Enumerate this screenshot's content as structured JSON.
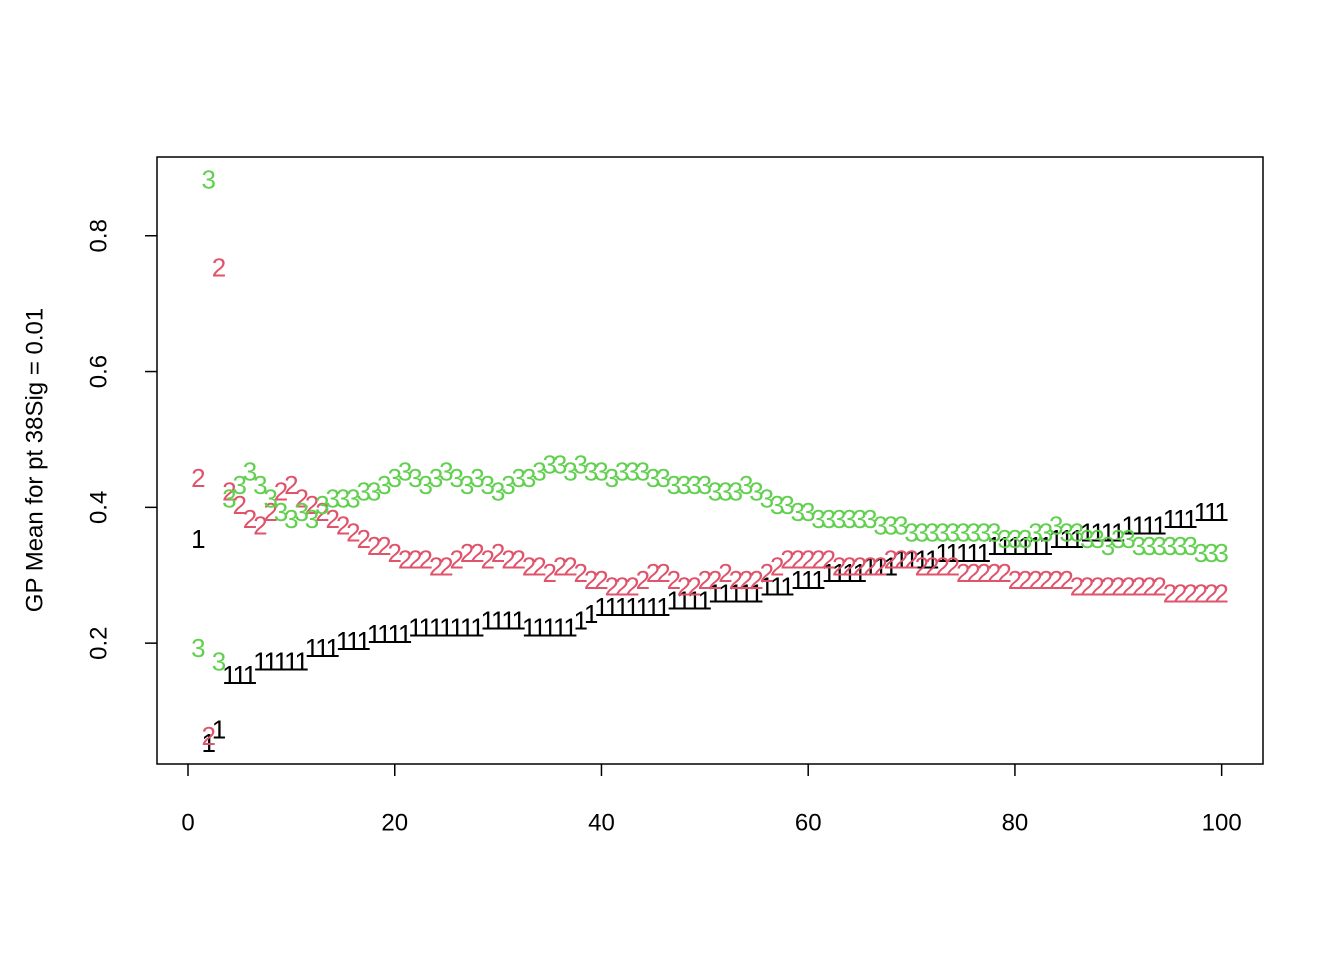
{
  "chart_data": {
    "type": "scatter",
    "ylabel": "GP Mean for pt 38Sig = 0.01",
    "x": [
      1,
      2,
      3,
      4,
      5,
      6,
      7,
      8,
      9,
      10,
      11,
      12,
      13,
      14,
      15,
      16,
      17,
      18,
      19,
      20,
      21,
      22,
      23,
      24,
      25,
      26,
      27,
      28,
      29,
      30,
      31,
      32,
      33,
      34,
      35,
      36,
      37,
      38,
      39,
      40,
      41,
      42,
      43,
      44,
      45,
      46,
      47,
      48,
      49,
      50,
      51,
      52,
      53,
      54,
      55,
      56,
      57,
      58,
      59,
      60,
      61,
      62,
      63,
      64,
      65,
      66,
      67,
      68,
      69,
      70,
      71,
      72,
      73,
      74,
      75,
      76,
      77,
      78,
      79,
      80,
      81,
      82,
      83,
      84,
      85,
      86,
      87,
      88,
      89,
      90,
      91,
      92,
      93,
      94,
      95,
      96,
      97,
      98,
      99,
      100
    ],
    "series": [
      {
        "name": "1",
        "color": "#000000",
        "values": [
          0.35,
          0.05,
          0.07,
          0.15,
          0.15,
          0.15,
          0.17,
          0.17,
          0.17,
          0.17,
          0.17,
          0.19,
          0.19,
          0.19,
          0.2,
          0.2,
          0.2,
          0.21,
          0.21,
          0.21,
          0.21,
          0.22,
          0.22,
          0.22,
          0.22,
          0.22,
          0.22,
          0.22,
          0.23,
          0.23,
          0.23,
          0.23,
          0.22,
          0.22,
          0.22,
          0.22,
          0.22,
          0.23,
          0.24,
          0.25,
          0.25,
          0.25,
          0.25,
          0.25,
          0.25,
          0.25,
          0.26,
          0.26,
          0.26,
          0.26,
          0.27,
          0.27,
          0.27,
          0.27,
          0.27,
          0.28,
          0.28,
          0.28,
          0.29,
          0.29,
          0.29,
          0.3,
          0.3,
          0.3,
          0.3,
          0.31,
          0.31,
          0.31,
          0.32,
          0.32,
          0.32,
          0.32,
          0.33,
          0.33,
          0.33,
          0.33,
          0.33,
          0.34,
          0.34,
          0.34,
          0.34,
          0.34,
          0.34,
          0.35,
          0.35,
          0.35,
          0.36,
          0.36,
          0.36,
          0.36,
          0.37,
          0.37,
          0.37,
          0.37,
          0.38,
          0.38,
          0.38,
          0.39,
          0.39,
          0.39
        ]
      },
      {
        "name": "2",
        "color": "#DF536B",
        "values": [
          0.44,
          0.06,
          0.75,
          0.42,
          0.4,
          0.38,
          0.37,
          0.39,
          0.42,
          0.43,
          0.41,
          0.4,
          0.39,
          0.38,
          0.37,
          0.36,
          0.35,
          0.34,
          0.34,
          0.33,
          0.32,
          0.32,
          0.32,
          0.31,
          0.31,
          0.32,
          0.33,
          0.33,
          0.32,
          0.33,
          0.32,
          0.32,
          0.31,
          0.31,
          0.3,
          0.31,
          0.31,
          0.3,
          0.29,
          0.29,
          0.28,
          0.28,
          0.28,
          0.29,
          0.3,
          0.3,
          0.29,
          0.28,
          0.28,
          0.29,
          0.29,
          0.3,
          0.29,
          0.29,
          0.29,
          0.3,
          0.31,
          0.32,
          0.32,
          0.32,
          0.32,
          0.32,
          0.31,
          0.31,
          0.31,
          0.31,
          0.31,
          0.32,
          0.32,
          0.32,
          0.31,
          0.31,
          0.31,
          0.31,
          0.3,
          0.3,
          0.3,
          0.3,
          0.3,
          0.29,
          0.29,
          0.29,
          0.29,
          0.29,
          0.29,
          0.28,
          0.28,
          0.28,
          0.28,
          0.28,
          0.28,
          0.28,
          0.28,
          0.28,
          0.27,
          0.27,
          0.27,
          0.27,
          0.27,
          0.27
        ]
      },
      {
        "name": "3",
        "color": "#61D04F",
        "values": [
          0.19,
          0.88,
          0.17,
          0.41,
          0.43,
          0.45,
          0.43,
          0.41,
          0.39,
          0.38,
          0.39,
          0.38,
          0.4,
          0.41,
          0.41,
          0.41,
          0.42,
          0.42,
          0.43,
          0.44,
          0.45,
          0.44,
          0.43,
          0.44,
          0.45,
          0.44,
          0.43,
          0.44,
          0.43,
          0.42,
          0.43,
          0.44,
          0.44,
          0.45,
          0.46,
          0.46,
          0.45,
          0.46,
          0.45,
          0.45,
          0.44,
          0.45,
          0.45,
          0.45,
          0.44,
          0.44,
          0.43,
          0.43,
          0.43,
          0.43,
          0.42,
          0.42,
          0.42,
          0.43,
          0.42,
          0.41,
          0.4,
          0.4,
          0.39,
          0.39,
          0.38,
          0.38,
          0.38,
          0.38,
          0.38,
          0.38,
          0.37,
          0.37,
          0.37,
          0.36,
          0.36,
          0.36,
          0.36,
          0.36,
          0.36,
          0.36,
          0.36,
          0.36,
          0.35,
          0.35,
          0.35,
          0.36,
          0.36,
          0.37,
          0.36,
          0.36,
          0.35,
          0.35,
          0.34,
          0.35,
          0.35,
          0.34,
          0.34,
          0.34,
          0.34,
          0.34,
          0.34,
          0.33,
          0.33,
          0.33
        ]
      }
    ],
    "xlim": [
      -3,
      104
    ],
    "ylim": [
      0.022,
      0.916
    ],
    "xticks": [
      0,
      20,
      40,
      60,
      80,
      100
    ],
    "yticks": [
      0.2,
      0.4,
      0.6,
      0.8
    ]
  }
}
